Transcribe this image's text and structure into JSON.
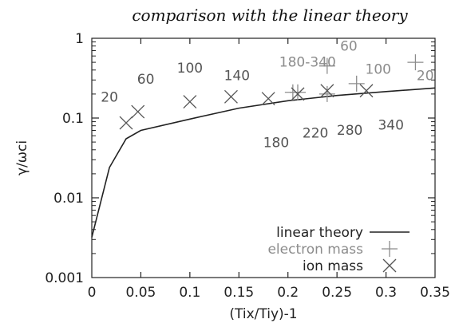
{
  "chart_data": {
    "type": "scatter",
    "title": "comparison with the linear theory",
    "xlabel": "(Tix/Tiy)-1",
    "ylabel": "γ/ωci",
    "xlim": [
      0,
      0.35
    ],
    "ylim": [
      0.001,
      1
    ],
    "yscale": "log",
    "x_ticks": [
      "0",
      "0.05",
      "0.1",
      "0.15",
      "0.2",
      "0.25",
      "0.3",
      "0.35"
    ],
    "y_ticks": [
      "0.001",
      "0.01",
      "0.1",
      "1"
    ],
    "legend_position": "bottom-right",
    "series": [
      {
        "name": "linear theory",
        "marker": "line",
        "color": "#222222",
        "x": [
          0.0,
          0.018,
          0.035,
          0.05,
          0.1,
          0.15,
          0.2,
          0.25,
          0.3,
          0.35
        ],
        "y": [
          0.0032,
          0.024,
          0.055,
          0.07,
          0.097,
          0.133,
          0.165,
          0.192,
          0.215,
          0.238
        ]
      },
      {
        "name": "electron mass",
        "marker": "plus",
        "color": "#8c8c8c",
        "x": [
          0.205,
          0.21,
          0.24,
          0.24,
          0.27,
          0.33
        ],
        "y": [
          0.21,
          0.21,
          0.2,
          0.45,
          0.27,
          0.5
        ]
      },
      {
        "name": "ion mass",
        "marker": "x",
        "color": "#555555",
        "x": [
          0.035,
          0.047,
          0.1,
          0.142,
          0.18,
          0.21,
          0.24,
          0.28
        ],
        "y": [
          0.087,
          0.12,
          0.16,
          0.185,
          0.175,
          0.2,
          0.22,
          0.22
        ]
      }
    ],
    "annotations": [
      {
        "text": "20",
        "x": 0.018,
        "y": 0.16,
        "color": "#555555"
      },
      {
        "text": "60",
        "x": 0.055,
        "y": 0.27,
        "color": "#555555"
      },
      {
        "text": "100",
        "x": 0.1,
        "y": 0.37,
        "color": "#555555"
      },
      {
        "text": "140",
        "x": 0.148,
        "y": 0.3,
        "color": "#555555"
      },
      {
        "text": "180-340",
        "x": 0.22,
        "y": 0.44,
        "color": "#8c8c8c"
      },
      {
        "text": "60",
        "x": 0.262,
        "y": 0.7,
        "color": "#8c8c8c"
      },
      {
        "text": "100",
        "x": 0.292,
        "y": 0.36,
        "color": "#8c8c8c"
      },
      {
        "text": "20",
        "x": 0.34,
        "y": 0.3,
        "color": "#8c8c8c"
      },
      {
        "text": "180",
        "x": 0.188,
        "y": 0.043,
        "color": "#555555"
      },
      {
        "text": "220",
        "x": 0.228,
        "y": 0.057,
        "color": "#555555"
      },
      {
        "text": "280",
        "x": 0.263,
        "y": 0.062,
        "color": "#555555"
      },
      {
        "text": "340",
        "x": 0.305,
        "y": 0.072,
        "color": "#555555"
      }
    ]
  }
}
